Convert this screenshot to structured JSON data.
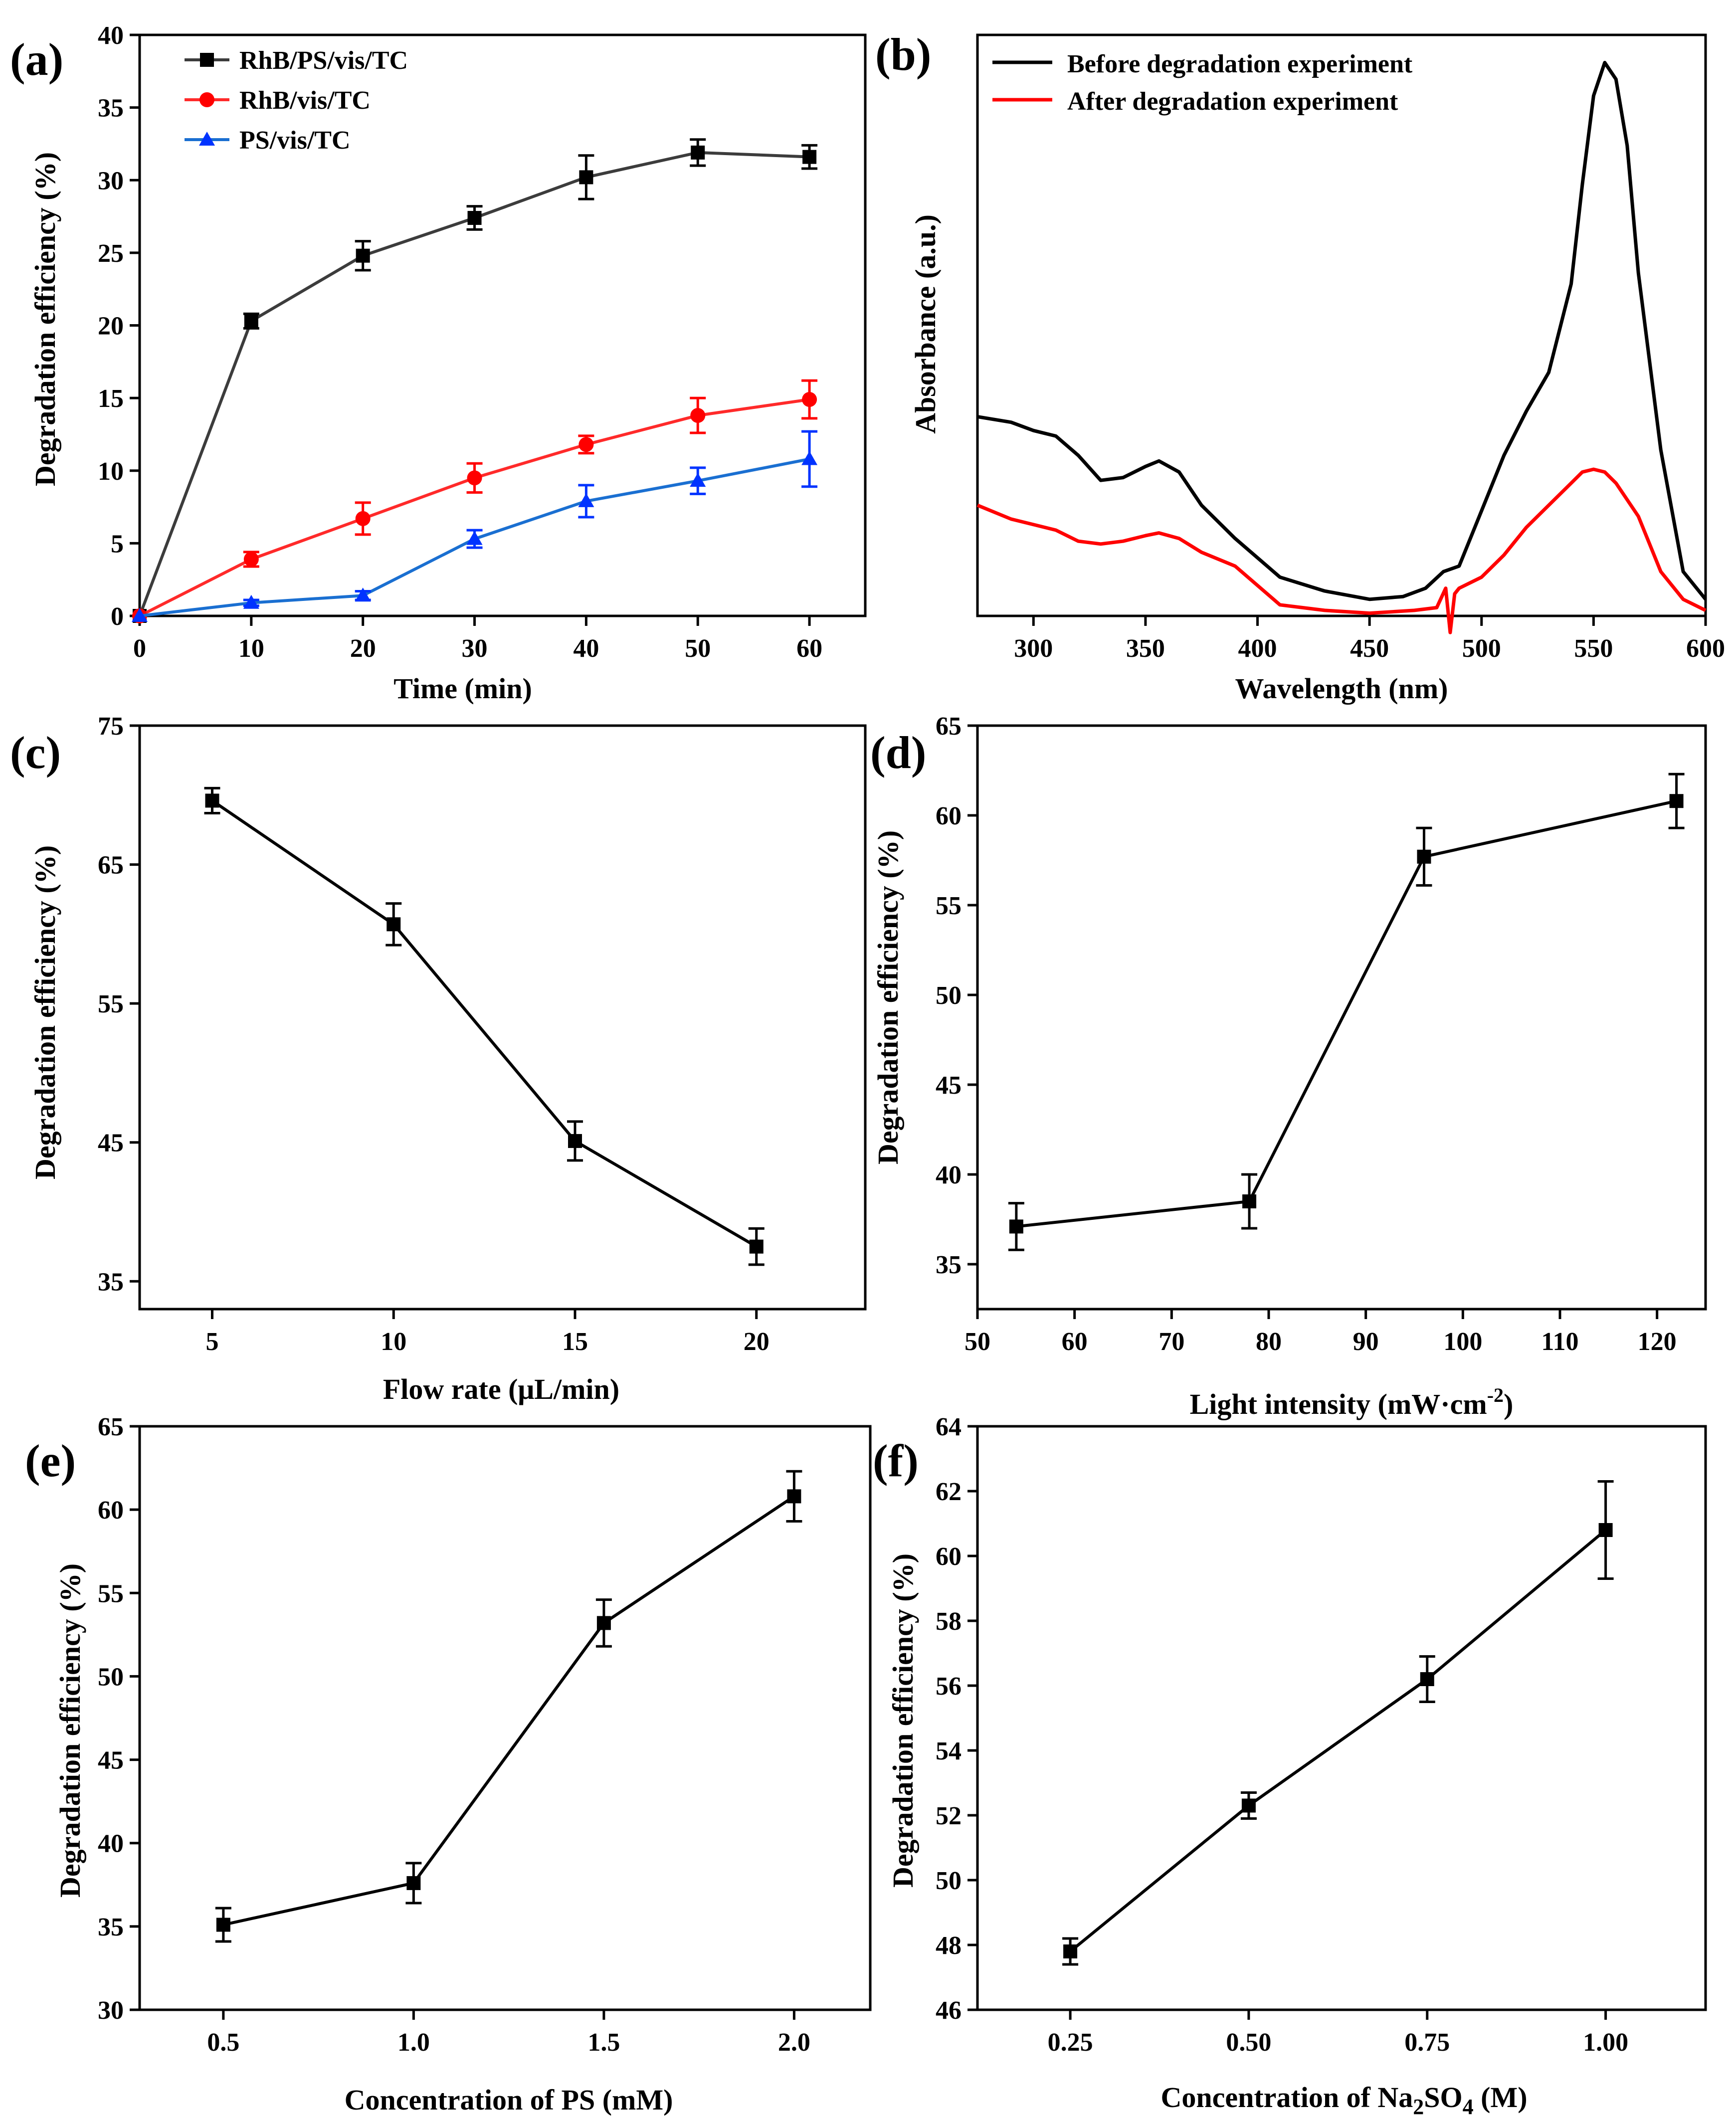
{
  "chart_data": [
    {
      "id": "a",
      "type": "line",
      "panel_label": "(a)",
      "xlabel": "Time (min)",
      "ylabel": "Degradation efficiency (%)",
      "xlim": [
        0,
        65
      ],
      "ylim": [
        0,
        40
      ],
      "xticks": [
        0,
        10,
        20,
        30,
        40,
        50,
        60
      ],
      "yticks": [
        0,
        5,
        10,
        15,
        20,
        25,
        30,
        35,
        40
      ],
      "legend_position": "top-left",
      "x": [
        0,
        10,
        20,
        30,
        40,
        50,
        60
      ],
      "series": [
        {
          "name": "RhB/PS/vis/TC",
          "marker": "square",
          "color": "#3c3c3c",
          "values": [
            0,
            20.3,
            24.8,
            27.4,
            30.2,
            31.9,
            31.6
          ],
          "errors": [
            0,
            0.5,
            1.0,
            0.8,
            1.5,
            0.9,
            0.8
          ]
        },
        {
          "name": "RhB/vis/TC",
          "marker": "circle",
          "color": "#ff2a2a",
          "values": [
            0,
            3.9,
            6.7,
            9.5,
            11.8,
            13.8,
            14.9
          ],
          "errors": [
            0,
            0.5,
            1.1,
            1.0,
            0.6,
            1.2,
            1.3
          ]
        },
        {
          "name": "PS/vis/TC",
          "marker": "triangle",
          "color": "#1a6fd1",
          "values": [
            0,
            0.9,
            1.4,
            5.3,
            7.9,
            9.3,
            10.8
          ],
          "errors": [
            0,
            0.2,
            0.3,
            0.6,
            1.1,
            0.9,
            1.9
          ]
        }
      ]
    },
    {
      "id": "b",
      "type": "line",
      "panel_label": "(b)",
      "xlabel": "Wavelength (nm)",
      "ylabel": "Absorbance (a.u.)",
      "xlim": [
        275,
        600
      ],
      "ylim": [
        0,
        1.05
      ],
      "xticks": [
        300,
        350,
        400,
        450,
        500,
        550,
        600
      ],
      "yticks": [],
      "legend_position": "top-left",
      "series": [
        {
          "name": "Before degradation experiment",
          "color": "#000000",
          "x": [
            275,
            290,
            300,
            310,
            320,
            330,
            340,
            350,
            356,
            365,
            375,
            390,
            410,
            430,
            450,
            465,
            475,
            483,
            490,
            500,
            510,
            520,
            530,
            540,
            545,
            550,
            555,
            560,
            565,
            570,
            580,
            590,
            600
          ],
          "y": [
            0.36,
            0.35,
            0.335,
            0.325,
            0.29,
            0.245,
            0.25,
            0.27,
            0.28,
            0.26,
            0.2,
            0.14,
            0.07,
            0.045,
            0.03,
            0.035,
            0.05,
            0.08,
            0.09,
            0.19,
            0.29,
            0.37,
            0.44,
            0.6,
            0.78,
            0.94,
            1.0,
            0.97,
            0.85,
            0.62,
            0.3,
            0.08,
            0.03
          ]
        },
        {
          "name": "After degradation experiment",
          "color": "#ff0000",
          "x": [
            275,
            290,
            300,
            310,
            320,
            330,
            340,
            350,
            356,
            365,
            375,
            390,
            410,
            430,
            450,
            470,
            480,
            484,
            486,
            488,
            490,
            500,
            510,
            520,
            530,
            540,
            545,
            550,
            555,
            560,
            570,
            580,
            590,
            600
          ],
          "y": [
            0.2,
            0.175,
            0.165,
            0.155,
            0.135,
            0.13,
            0.135,
            0.145,
            0.15,
            0.14,
            0.115,
            0.09,
            0.02,
            0.01,
            0.005,
            0.01,
            0.015,
            0.05,
            -0.03,
            0.04,
            0.05,
            0.07,
            0.11,
            0.16,
            0.2,
            0.24,
            0.26,
            0.265,
            0.26,
            0.24,
            0.18,
            0.08,
            0.03,
            0.01
          ]
        }
      ]
    },
    {
      "id": "c",
      "type": "line",
      "panel_label": "(c)",
      "xlabel": "Flow rate (μL/min)",
      "ylabel": "Degradation efficiency (%)",
      "xlim": [
        3,
        23
      ],
      "ylim": [
        33,
        75
      ],
      "xticks": [
        5,
        10,
        15,
        20
      ],
      "yticks": [
        35,
        45,
        55,
        65,
        75
      ],
      "x": [
        5,
        10,
        15,
        20
      ],
      "series": [
        {
          "color": "#000000",
          "marker": "square",
          "values": [
            69.6,
            60.7,
            45.1,
            37.5
          ],
          "errors": [
            0.9,
            1.5,
            1.4,
            1.3
          ]
        }
      ]
    },
    {
      "id": "d",
      "type": "line",
      "panel_label": "(d)",
      "xlabel": "Light intensity (mW·cm",
      "xlabel_sup": "-2",
      "xlabel_end": ")",
      "ylabel": "Degradation efficiency (%)",
      "xlim": [
        50,
        125
      ],
      "ylim": [
        32.5,
        65
      ],
      "xticks": [
        50,
        60,
        70,
        80,
        90,
        100,
        110,
        120
      ],
      "yticks": [
        35,
        40,
        45,
        50,
        55,
        60,
        65
      ],
      "x": [
        54,
        78,
        96,
        122
      ],
      "series": [
        {
          "color": "#000000",
          "marker": "square",
          "values": [
            37.1,
            38.5,
            57.7,
            60.8
          ],
          "errors": [
            1.3,
            1.5,
            1.6,
            1.5
          ]
        }
      ]
    },
    {
      "id": "e",
      "type": "line",
      "panel_label": "(e)",
      "xlabel": "Concentration of PS (mM)",
      "ylabel": "Degradation efficiency (%)",
      "xlim": [
        0.28,
        2.2
      ],
      "ylim": [
        30,
        65
      ],
      "xticks": [
        "0.5",
        "1.0",
        "1.5",
        "2.0"
      ],
      "yticks": [
        30,
        35,
        40,
        45,
        50,
        55,
        60,
        65
      ],
      "x": [
        0.5,
        1.0,
        1.5,
        2.0
      ],
      "series": [
        {
          "color": "#000000",
          "marker": "square",
          "values": [
            35.1,
            37.6,
            53.2,
            60.8
          ],
          "errors": [
            1.0,
            1.2,
            1.4,
            1.5
          ]
        }
      ]
    },
    {
      "id": "f",
      "type": "line",
      "panel_label": "(f)",
      "xlabel": "Concentration of Na",
      "xlabel_sub1": "2",
      "xlabel_mid": "SO",
      "xlabel_sub2": "4",
      "xlabel_end": " (M)",
      "ylabel": "Degradation efficiency (%)",
      "xlim": [
        0.12,
        1.14
      ],
      "ylim": [
        46,
        64
      ],
      "xticks": [
        "0.25",
        "0.50",
        "0.75",
        "1.00"
      ],
      "yticks": [
        46,
        48,
        50,
        52,
        54,
        56,
        58,
        60,
        62,
        64
      ],
      "x": [
        0.25,
        0.5,
        0.75,
        1.0
      ],
      "series": [
        {
          "color": "#000000",
          "marker": "square",
          "values": [
            47.8,
            52.3,
            56.2,
            60.8
          ],
          "errors": [
            0.4,
            0.4,
            0.7,
            1.5
          ]
        }
      ]
    }
  ]
}
